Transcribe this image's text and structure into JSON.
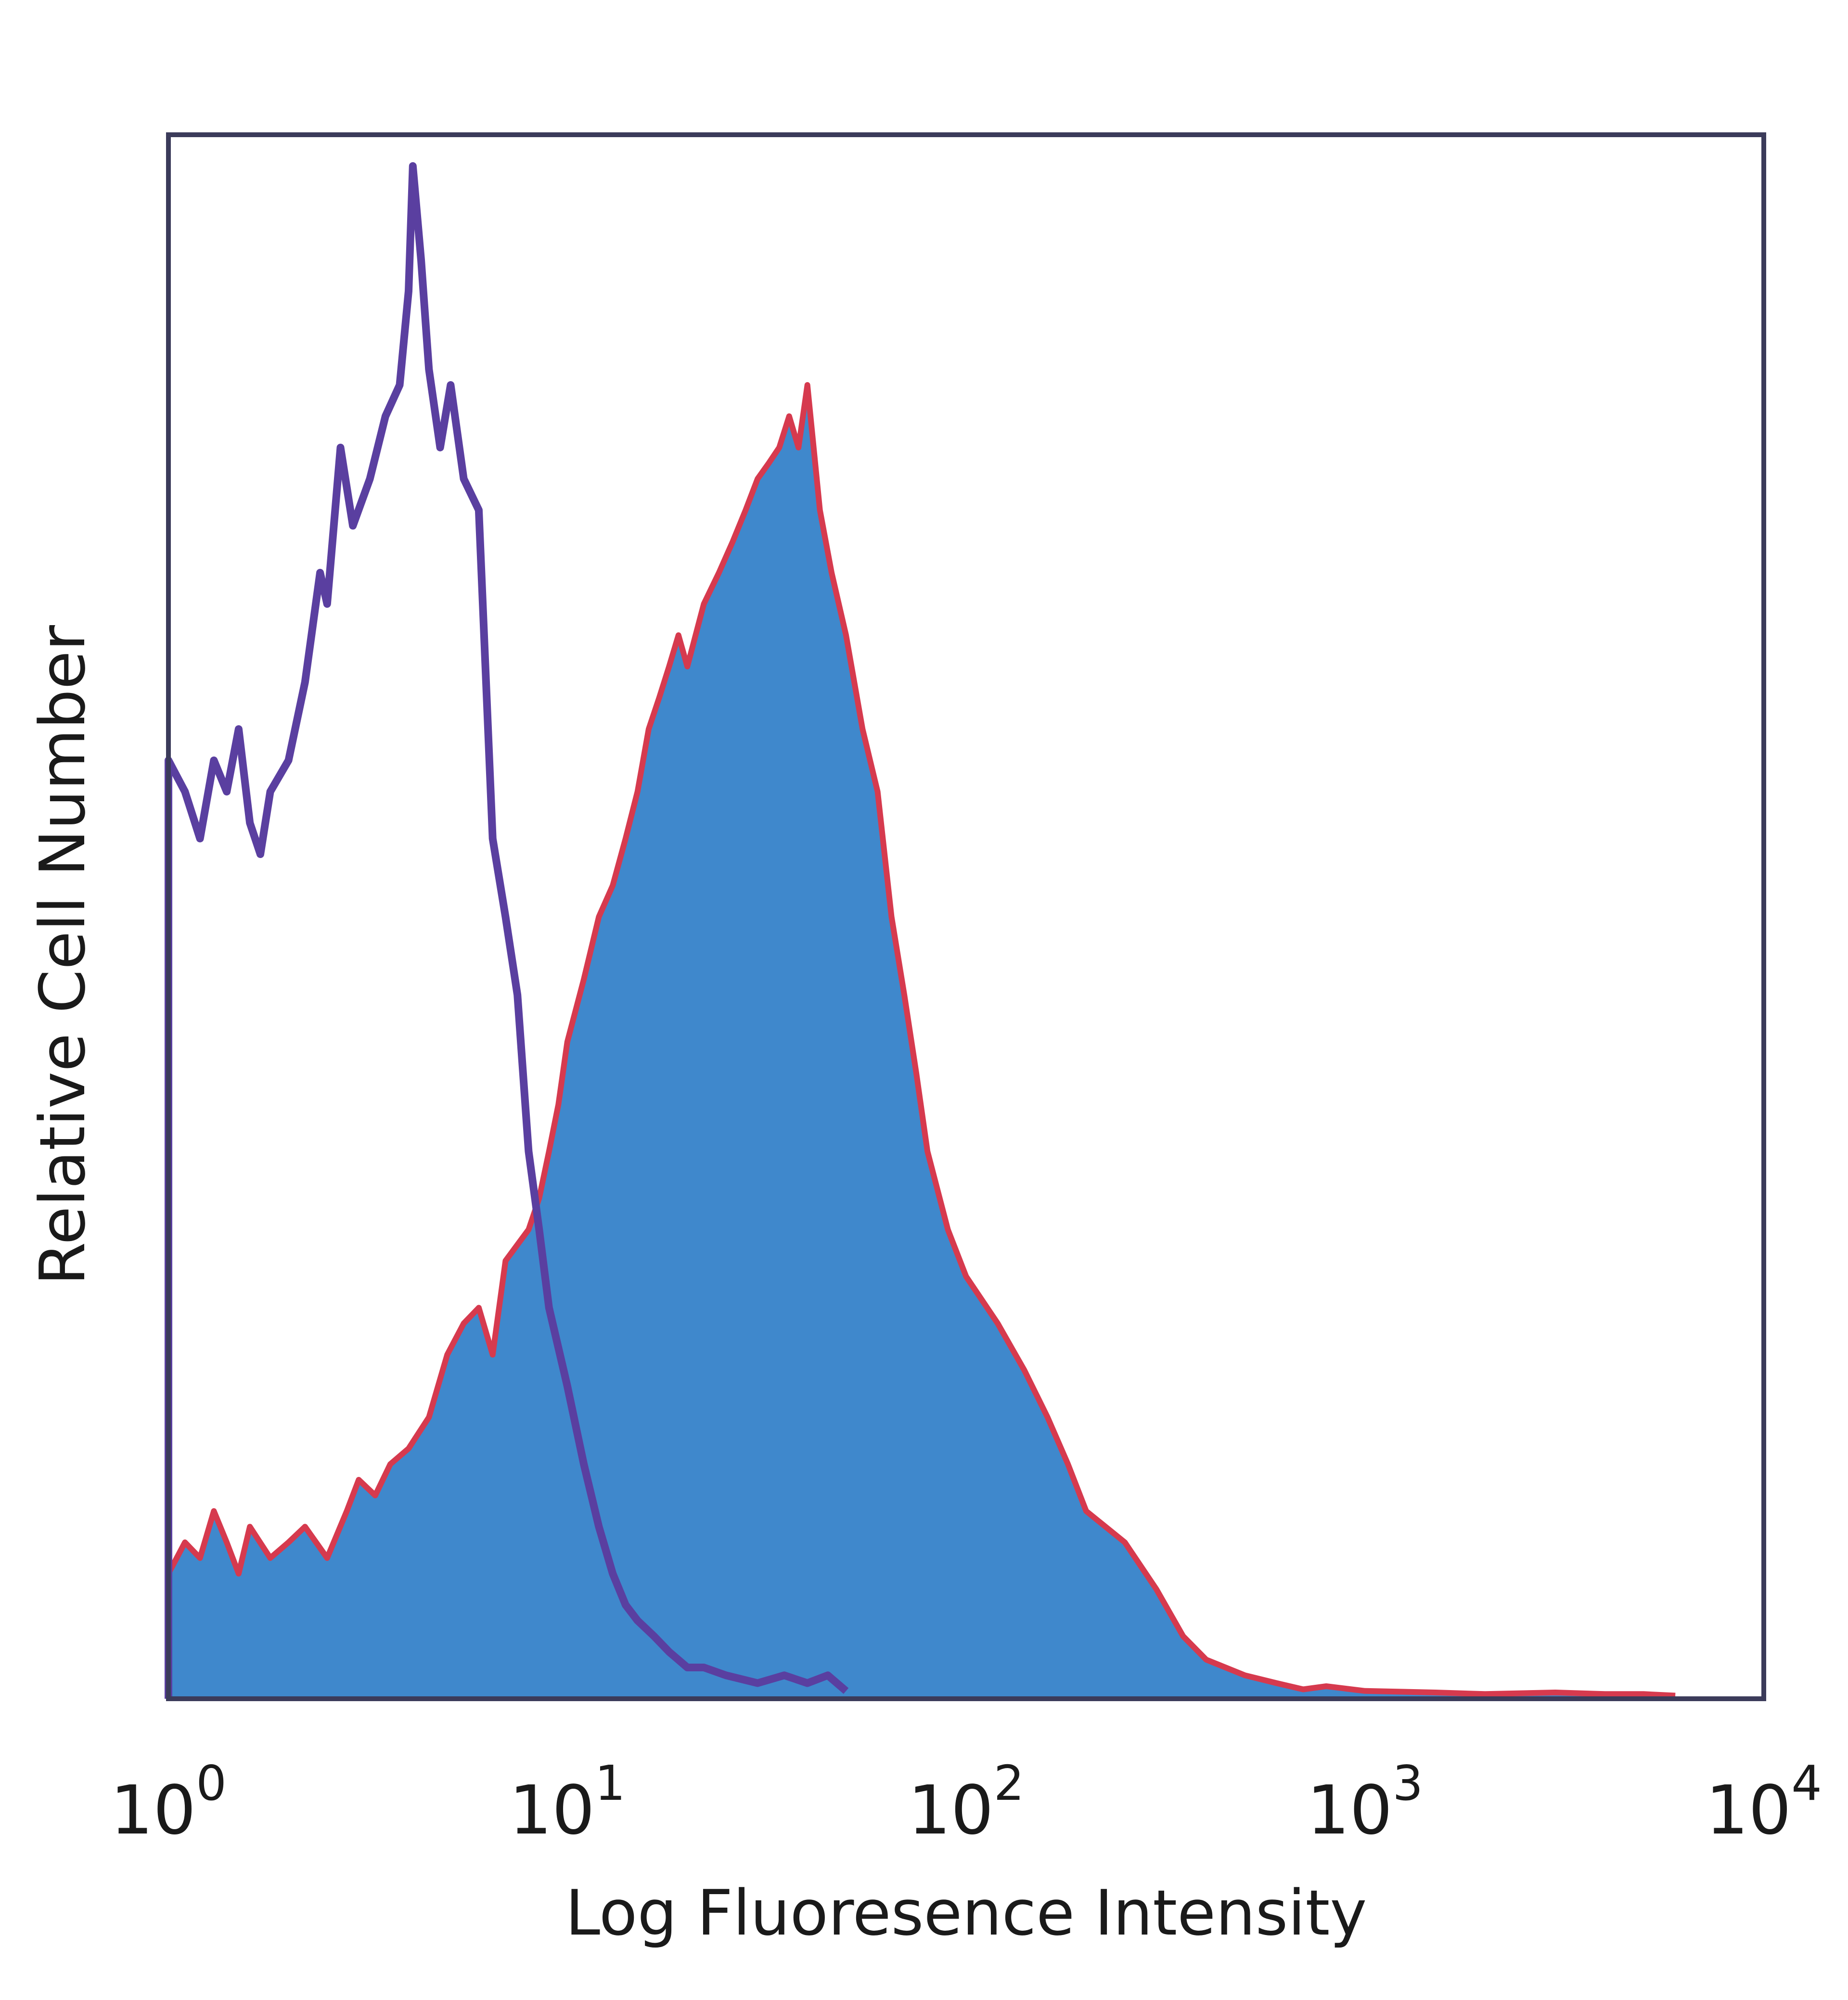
{
  "chart_data": {
    "type": "area",
    "title": "",
    "xlabel": "Log Fluoresence Intensity",
    "ylabel": "Relative Cell Number",
    "x_scale": "log",
    "xlim": [
      1,
      10000
    ],
    "ylim": [
      0,
      1.0
    ],
    "grid": false,
    "legend": "none",
    "x_ticks": [
      {
        "base": "10",
        "exp": "0",
        "value": 1
      },
      {
        "base": "10",
        "exp": "1",
        "value": 10
      },
      {
        "base": "10",
        "exp": "2",
        "value": 100
      },
      {
        "base": "10",
        "exp": "3",
        "value": 1000
      },
      {
        "base": "10",
        "exp": "4",
        "value": 10000
      }
    ],
    "series": [
      {
        "role": "isotype-control",
        "style": "outline",
        "color": "#5a3fa0",
        "x": [
          1.0,
          1.1,
          1.2,
          1.3,
          1.4,
          1.5,
          1.6,
          1.7,
          1.8,
          2.0,
          2.2,
          2.4,
          2.5,
          2.7,
          2.9,
          3.2,
          3.5,
          3.8,
          4.0,
          4.1,
          4.3,
          4.5,
          4.8,
          5.1,
          5.5,
          6.0,
          6.5,
          7.0,
          7.5,
          8.0,
          8.5,
          9.0,
          10.0,
          11.0,
          12.0,
          13.0,
          14.0,
          15.0,
          16.5,
          18.0,
          20.0,
          22.0,
          25.0,
          30.0,
          35.0,
          40.0,
          45.0,
          50.0
        ],
        "y": [
          0.6,
          0.58,
          0.55,
          0.6,
          0.58,
          0.62,
          0.56,
          0.54,
          0.58,
          0.6,
          0.65,
          0.72,
          0.7,
          0.8,
          0.75,
          0.78,
          0.82,
          0.84,
          0.9,
          0.98,
          0.92,
          0.85,
          0.8,
          0.84,
          0.78,
          0.76,
          0.55,
          0.5,
          0.45,
          0.35,
          0.3,
          0.25,
          0.2,
          0.15,
          0.11,
          0.08,
          0.06,
          0.05,
          0.04,
          0.03,
          0.02,
          0.02,
          0.015,
          0.01,
          0.015,
          0.01,
          0.015,
          0.005
        ]
      },
      {
        "role": "stained",
        "style": "filled",
        "color": "#3f88cc",
        "edge_color": "#d63a4e",
        "x": [
          1.0,
          1.1,
          1.2,
          1.3,
          1.4,
          1.5,
          1.6,
          1.8,
          2.0,
          2.2,
          2.5,
          2.8,
          3.0,
          3.3,
          3.6,
          4.0,
          4.5,
          5.0,
          5.5,
          6.0,
          6.5,
          7.0,
          8.0,
          8.5,
          9.0,
          9.5,
          10.0,
          11.0,
          12.0,
          13.0,
          14.0,
          15.0,
          16.0,
          17.0,
          18.0,
          19.0,
          20.0,
          22.0,
          24.0,
          26.0,
          28.0,
          30.0,
          32.0,
          34.0,
          36.0,
          38.0,
          40.0,
          43.0,
          46.0,
          50.0,
          55.0,
          60.0,
          65.0,
          70.0,
          75.0,
          80.0,
          90.0,
          100.0,
          120.0,
          140.0,
          160.0,
          180.0,
          200.0,
          250.0,
          300.0,
          350.0,
          400.0,
          500.0,
          600.0,
          700.0,
          800.0,
          1000.0,
          1500.0,
          2000.0,
          3000.0,
          4000.0,
          5000.0,
          6000.0
        ],
        "y": [
          0.08,
          0.1,
          0.09,
          0.12,
          0.1,
          0.08,
          0.11,
          0.09,
          0.1,
          0.11,
          0.09,
          0.12,
          0.14,
          0.13,
          0.15,
          0.16,
          0.18,
          0.22,
          0.24,
          0.25,
          0.22,
          0.28,
          0.3,
          0.32,
          0.35,
          0.38,
          0.42,
          0.46,
          0.5,
          0.52,
          0.55,
          0.58,
          0.62,
          0.64,
          0.66,
          0.68,
          0.66,
          0.7,
          0.72,
          0.74,
          0.76,
          0.78,
          0.79,
          0.8,
          0.82,
          0.8,
          0.84,
          0.76,
          0.72,
          0.68,
          0.62,
          0.58,
          0.5,
          0.45,
          0.4,
          0.35,
          0.3,
          0.27,
          0.24,
          0.21,
          0.18,
          0.15,
          0.12,
          0.1,
          0.07,
          0.04,
          0.025,
          0.015,
          0.01,
          0.006,
          0.008,
          0.005,
          0.004,
          0.003,
          0.004,
          0.003,
          0.003,
          0.002
        ]
      }
    ]
  }
}
